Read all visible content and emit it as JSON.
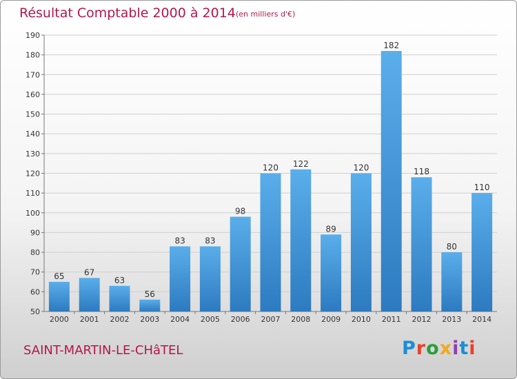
{
  "header": {
    "title": "Résultat Comptable 2000 à 2014",
    "subtitle": "(en milliers d'€)"
  },
  "footer": {
    "commune": "SAINT-MARTIN-LE-CHâTEL",
    "brand": "Proxiti",
    "brand_colors": [
      "#1a8ed8",
      "#e8412a",
      "#2a9d3a",
      "#f2a81d",
      "#8f3fb0",
      "#1a8ed8",
      "#e8412a"
    ]
  },
  "colors": {
    "accent": "#b3164d",
    "bar_light": "#5aaeea",
    "bar_dark": "#2d7ac0"
  },
  "chart_data": {
    "type": "bar",
    "categories": [
      "2000",
      "2001",
      "2002",
      "2003",
      "2004",
      "2005",
      "2006",
      "2007",
      "2008",
      "2009",
      "2010",
      "2011",
      "2012",
      "2013",
      "2014"
    ],
    "values": [
      65,
      67,
      63,
      56,
      83,
      83,
      98,
      120,
      122,
      89,
      120,
      182,
      118,
      80,
      110
    ],
    "title": "Résultat Comptable 2000 à 2014",
    "subtitle": "(en milliers d'€)",
    "xlabel": "",
    "ylabel": "",
    "ylim": [
      50,
      190
    ],
    "yticks": [
      50,
      60,
      70,
      80,
      90,
      100,
      110,
      120,
      130,
      140,
      150,
      160,
      170,
      180,
      190
    ],
    "grid": true,
    "legend": "none"
  }
}
